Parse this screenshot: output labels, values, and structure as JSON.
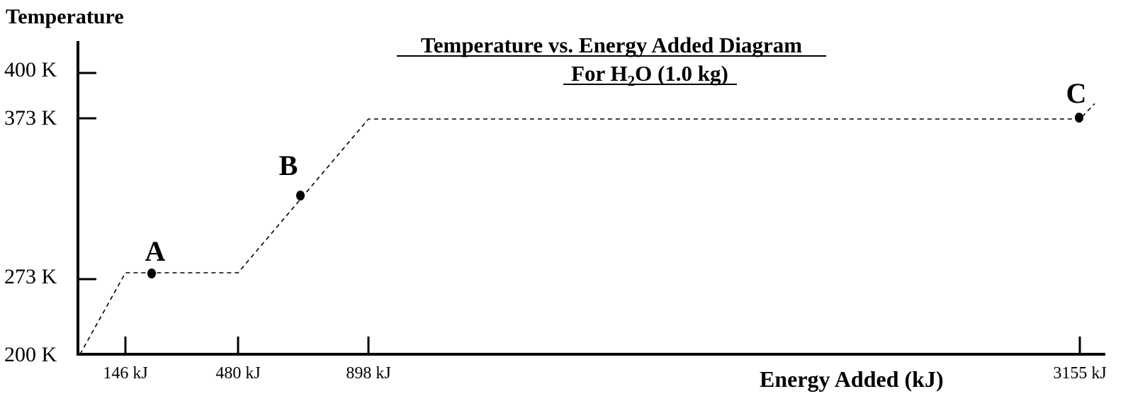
{
  "chart_data": {
    "type": "line",
    "title": "Temperature vs. Energy Added Diagram",
    "subtitle": {
      "prefix": "For H",
      "subscript": "2",
      "suffix": "O (1.0 kg)"
    },
    "xlabel": "Energy Added (kJ)",
    "ylabel": "Temperature",
    "x_ticks": [
      {
        "value": 146,
        "label": "146 kJ"
      },
      {
        "value": 480,
        "label": "480 kJ"
      },
      {
        "value": 898,
        "label": "898 kJ"
      },
      {
        "value": 3155,
        "label": "3155 kJ"
      }
    ],
    "y_ticks": [
      {
        "value": 200,
        "label": "200 K"
      },
      {
        "value": 273,
        "label": "273 K"
      },
      {
        "value": 373,
        "label": "373 K"
      },
      {
        "value": 400,
        "label": "400 K"
      }
    ],
    "series": [
      {
        "style": "dashed",
        "x": [
          0,
          146,
          480,
          898,
          3155,
          3190
        ],
        "y": [
          200,
          273,
          273,
          373,
          373,
          382
        ]
      }
    ],
    "points": [
      {
        "label": "A",
        "x": 230,
        "y": 273
      },
      {
        "label": "B",
        "x": 710,
        "y": 325
      },
      {
        "label": "C",
        "x": 3155,
        "y": 373
      }
    ]
  }
}
